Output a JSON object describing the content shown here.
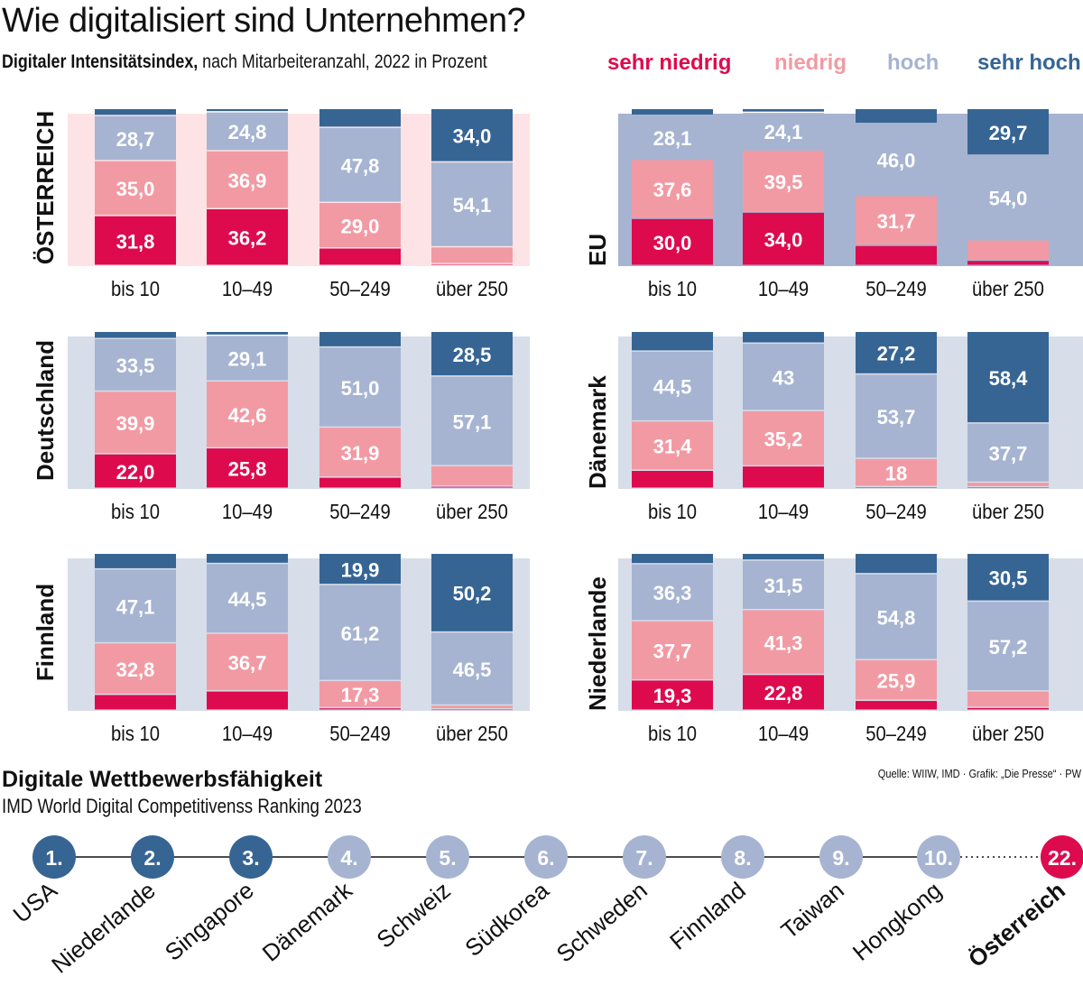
{
  "title": "Wie digitalisiert sind Unternehmen?",
  "subtitle_bold": "Digitaler Intensitätsindex,",
  "subtitle_rest": " nach Mitarbeiteranzahl, 2022 in Prozent",
  "source": "Quelle: WIIW, IMD · Grafik: „Die Presse“ · PW",
  "colors": {
    "sehr_niedrig": "#de0a4e",
    "niedrig": "#f29aa3",
    "hoch": "#a6b4d2",
    "sehr_hoch": "#366594",
    "bg_austria": "#fde3e5",
    "bg_other": "#d7dde9",
    "bg_eu": "#a6b4d2",
    "rank_top": "#366594",
    "rank_other": "#a6b4d2",
    "rank_austria": "#de0a4e"
  },
  "chart_data": [
    {
      "type": "bar",
      "stacked": true,
      "legend": [
        "sehr niedrig",
        "niedrig",
        "hoch",
        "sehr hoch"
      ],
      "legend_placement": "top-right",
      "categories": [
        "bis 10",
        "10–49",
        "50–249",
        "über 250"
      ],
      "ylim": [
        0,
        100
      ],
      "panels": [
        {
          "name": "ÖSTERREICH",
          "bg": "bg_austria",
          "series": [
            {
              "name": "sehr niedrig",
              "values": [
                31.8,
                36.2,
                11.2,
                1.2
              ],
              "labels": [
                "31,8",
                "36,2",
                "",
                ""
              ]
            },
            {
              "name": "niedrig",
              "values": [
                35.0,
                36.9,
                29.0,
                10.7
              ],
              "labels": [
                "35,0",
                "36,9",
                "29,0",
                ""
              ]
            },
            {
              "name": "hoch",
              "values": [
                28.7,
                24.8,
                47.8,
                54.1
              ],
              "labels": [
                "28,7",
                "24,8",
                "47,8",
                "54,1"
              ]
            },
            {
              "name": "sehr hoch",
              "values": [
                4.5,
                2.1,
                12.0,
                34.0
              ],
              "labels": [
                "",
                "",
                "",
                "34,0"
              ]
            }
          ]
        },
        {
          "name": "EU",
          "bg": "bg_eu",
          "series": [
            {
              "name": "sehr niedrig",
              "values": [
                30.0,
                34.0,
                12.8,
                3.3
              ],
              "labels": [
                "30,0",
                "34,0",
                "",
                ""
              ]
            },
            {
              "name": "niedrig",
              "values": [
                37.6,
                39.5,
                31.7,
                13.0
              ],
              "labels": [
                "37,6",
                "39,5",
                "31,7",
                ""
              ]
            },
            {
              "name": "hoch",
              "values": [
                28.1,
                24.1,
                46.0,
                54.0
              ],
              "labels": [
                "28,1",
                "24,1",
                "46,0",
                "54,0"
              ]
            },
            {
              "name": "sehr hoch",
              "values": [
                4.3,
                2.4,
                9.5,
                29.7
              ],
              "labels": [
                "",
                "",
                "",
                "29,7"
              ]
            }
          ]
        },
        {
          "name": "Deutschland",
          "bg": "bg_other",
          "series": [
            {
              "name": "sehr niedrig",
              "values": [
                22.0,
                25.8,
                7.1,
                1.4
              ],
              "labels": [
                "22,0",
                "25,8",
                "",
                ""
              ]
            },
            {
              "name": "niedrig",
              "values": [
                39.9,
                42.6,
                31.9,
                13.0
              ],
              "labels": [
                "39,9",
                "42,6",
                "31,9",
                ""
              ]
            },
            {
              "name": "hoch",
              "values": [
                33.5,
                29.1,
                51.0,
                57.1
              ],
              "labels": [
                "33,5",
                "29,1",
                "51,0",
                "57,1"
              ]
            },
            {
              "name": "sehr hoch",
              "values": [
                4.6,
                2.5,
                10.0,
                28.5
              ],
              "labels": [
                "",
                "",
                "",
                "28,5"
              ]
            }
          ]
        },
        {
          "name": "Dänemark",
          "bg": "bg_other",
          "series": [
            {
              "name": "sehr niedrig",
              "values": [
                11.5,
                14.3,
                1.1,
                0.9
              ],
              "labels": [
                "",
                "",
                "",
                ""
              ]
            },
            {
              "name": "niedrig",
              "values": [
                31.4,
                35.2,
                18,
                3.0
              ],
              "labels": [
                "31,4",
                "35,2",
                "18",
                ""
              ]
            },
            {
              "name": "hoch",
              "values": [
                44.5,
                43,
                53.7,
                37.7
              ],
              "labels": [
                "44,5",
                "43",
                "53,7",
                "37,7"
              ]
            },
            {
              "name": "sehr hoch",
              "values": [
                12.6,
                7.5,
                27.2,
                58.4
              ],
              "labels": [
                "",
                "",
                "27,2",
                "58,4"
              ]
            }
          ]
        },
        {
          "name": "Finnland",
          "bg": "bg_other",
          "series": [
            {
              "name": "sehr niedrig",
              "values": [
                10.1,
                12.3,
                1.6,
                0.8
              ],
              "labels": [
                "",
                "",
                "",
                ""
              ]
            },
            {
              "name": "niedrig",
              "values": [
                32.8,
                36.7,
                17.3,
                2.5
              ],
              "labels": [
                "32,8",
                "36,7",
                "17,3",
                ""
              ]
            },
            {
              "name": "hoch",
              "values": [
                47.1,
                44.5,
                61.2,
                46.5
              ],
              "labels": [
                "47,1",
                "44,5",
                "61,2",
                "46,5"
              ]
            },
            {
              "name": "sehr hoch",
              "values": [
                10.0,
                6.5,
                19.9,
                50.2
              ],
              "labels": [
                "",
                "",
                "19,9",
                "50,2"
              ]
            }
          ]
        },
        {
          "name": "Niederlande",
          "bg": "bg_other",
          "series": [
            {
              "name": "sehr niedrig",
              "values": [
                19.3,
                22.8,
                6.3,
                1.8
              ],
              "labels": [
                "19,3",
                "22,8",
                "",
                ""
              ]
            },
            {
              "name": "niedrig",
              "values": [
                37.7,
                41.3,
                25.9,
                10.5
              ],
              "labels": [
                "37,7",
                "41,3",
                "25,9",
                ""
              ]
            },
            {
              "name": "hoch",
              "values": [
                36.3,
                31.5,
                54.8,
                57.2
              ],
              "labels": [
                "36,3",
                "31,5",
                "54,8",
                "57,2"
              ]
            },
            {
              "name": "sehr hoch",
              "values": [
                6.7,
                4.4,
                13.0,
                30.5
              ],
              "labels": [
                "",
                "",
                "",
                "30,5"
              ]
            }
          ]
        }
      ]
    },
    {
      "type": "ranking",
      "title": "Digitale Wettbewerbsfähigkeit",
      "subtitle": "IMD World Digital Competitivenss Ranking 2023",
      "items": [
        {
          "rank": "1.",
          "country": "USA",
          "tier": "rank_top"
        },
        {
          "rank": "2.",
          "country": "Niederlande",
          "tier": "rank_top"
        },
        {
          "rank": "3.",
          "country": "Singapore",
          "tier": "rank_top"
        },
        {
          "rank": "4.",
          "country": "Dänemark",
          "tier": "rank_other"
        },
        {
          "rank": "5.",
          "country": "Schweiz",
          "tier": "rank_other"
        },
        {
          "rank": "6.",
          "country": "Südkorea",
          "tier": "rank_other"
        },
        {
          "rank": "7.",
          "country": "Schweden",
          "tier": "rank_other"
        },
        {
          "rank": "8.",
          "country": "Finnland",
          "tier": "rank_other"
        },
        {
          "rank": "9.",
          "country": "Taiwan",
          "tier": "rank_other"
        },
        {
          "rank": "10.",
          "country": "Hongkong",
          "tier": "rank_other"
        },
        {
          "rank": "22.",
          "country": "Österreich",
          "tier": "rank_austria"
        }
      ]
    }
  ]
}
